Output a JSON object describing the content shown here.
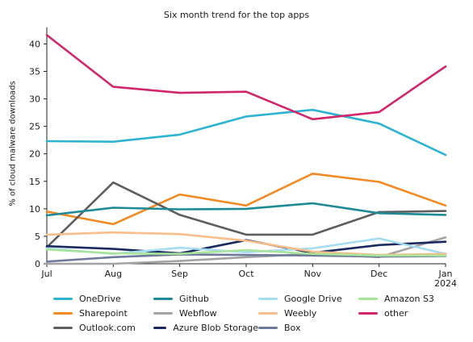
{
  "chart_data": {
    "type": "line",
    "title": "Six month trend for the top apps",
    "xlabel": "",
    "ylabel": "% of cloud malware downloads",
    "categories": [
      "Jul",
      "Aug",
      "Sep",
      "Oct",
      "Nov",
      "Dec",
      "Jan"
    ],
    "tick_labels": [
      "Jul",
      "Aug",
      "Sep",
      "Oct",
      "Nov",
      "Dec",
      "Jan\n2024"
    ],
    "yticks": [
      0,
      5,
      10,
      15,
      20,
      25,
      30,
      35,
      40
    ],
    "ylim": [
      0,
      43
    ],
    "grid": false,
    "legend_placement": "bottom",
    "series": [
      {
        "name": "OneDrive",
        "color": "#2eb4d0",
        "values": [
          22.3,
          22.2,
          23.5,
          26.8,
          28.0,
          25.5,
          19.8
        ]
      },
      {
        "name": "Sharepoint",
        "color": "#f28a24",
        "values": [
          9.5,
          7.2,
          12.6,
          10.6,
          16.4,
          14.9,
          10.6
        ]
      },
      {
        "name": "Outlook.com",
        "color": "#5e5e5e",
        "values": [
          3.0,
          14.8,
          8.9,
          5.3,
          5.3,
          9.4,
          9.6
        ]
      },
      {
        "name": "Github",
        "color": "#1e8a95",
        "values": [
          8.8,
          10.2,
          9.9,
          10.0,
          11.0,
          9.2,
          8.9
        ]
      },
      {
        "name": "Webflow",
        "color": "#a3a3a3",
        "values": [
          0.0,
          0.0,
          0.5,
          1.2,
          1.8,
          1.2,
          4.8
        ]
      },
      {
        "name": "Azure Blob Storage",
        "color": "#1b2a5e",
        "values": [
          3.2,
          2.7,
          1.9,
          4.3,
          2.0,
          3.4,
          4.0
        ]
      },
      {
        "name": "Google Drive",
        "color": "#a6dcef",
        "values": [
          2.8,
          1.8,
          2.9,
          2.1,
          2.8,
          4.6,
          1.8
        ]
      },
      {
        "name": "Weebly",
        "color": "#f7be8b",
        "values": [
          5.3,
          5.7,
          5.4,
          4.2,
          2.2,
          1.6,
          1.8
        ]
      },
      {
        "name": "Box",
        "color": "#6e7a99",
        "values": [
          0.4,
          1.2,
          1.7,
          1.6,
          1.5,
          1.3,
          1.4
        ]
      },
      {
        "name": "Amazon S3",
        "color": "#a8e49a",
        "values": [
          2.6,
          1.9,
          1.8,
          2.5,
          1.8,
          1.5,
          1.5
        ]
      },
      {
        "name": "other",
        "color": "#d0266c",
        "values": [
          41.6,
          32.2,
          31.1,
          31.3,
          26.3,
          27.6,
          35.9
        ]
      }
    ]
  },
  "legend": {
    "items": [
      {
        "label": "OneDrive",
        "color": "#2eb4d0"
      },
      {
        "label": "Github",
        "color": "#1e8a95"
      },
      {
        "label": "Google Drive",
        "color": "#a6dcef"
      },
      {
        "label": "Amazon S3",
        "color": "#a8e49a"
      },
      {
        "label": "Sharepoint",
        "color": "#f28a24"
      },
      {
        "label": "Webflow",
        "color": "#a3a3a3"
      },
      {
        "label": "Weebly",
        "color": "#f7be8b"
      },
      {
        "label": "other",
        "color": "#d0266c"
      },
      {
        "label": "Outlook.com",
        "color": "#5e5e5e"
      },
      {
        "label": "Azure Blob Storage",
        "color": "#1b2a5e"
      },
      {
        "label": "Box",
        "color": "#6e7a99"
      }
    ]
  }
}
